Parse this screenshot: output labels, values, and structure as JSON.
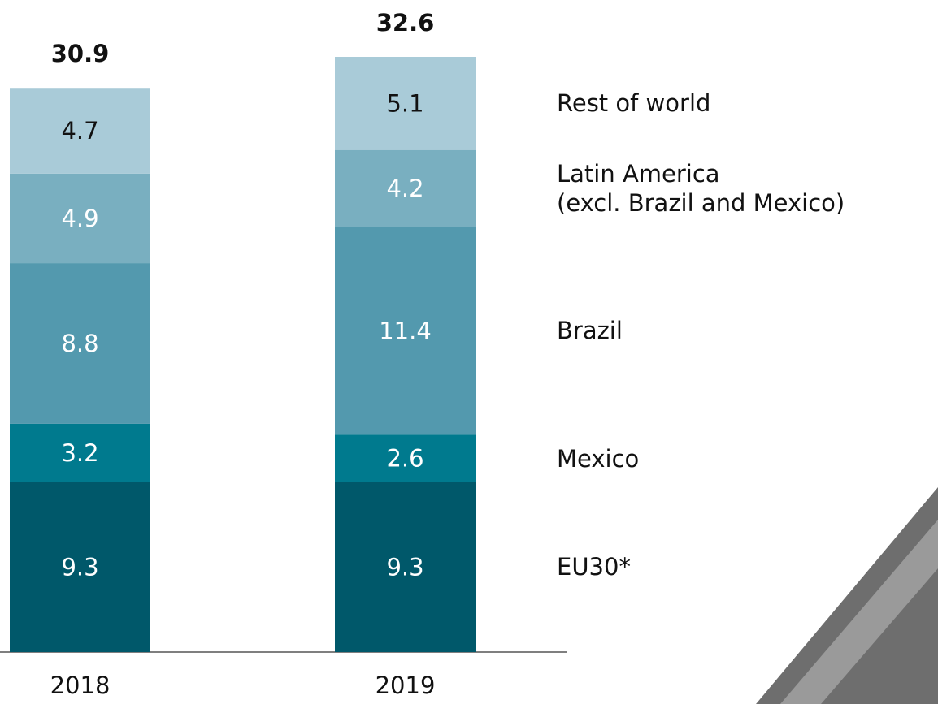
{
  "chart_data": {
    "type": "stacked-bar",
    "categories": [
      "2018",
      "2019"
    ],
    "totals": [
      30.9,
      32.6
    ],
    "series": [
      {
        "name": "EU30*",
        "color": "#00586a",
        "values": [
          9.3,
          9.3
        ]
      },
      {
        "name": "Mexico",
        "color": "#007a8e",
        "values": [
          3.2,
          2.6
        ]
      },
      {
        "name": "Brazil",
        "color": "#5399ae",
        "values": [
          8.8,
          11.4
        ]
      },
      {
        "name": "Latin America\n(excl. Brazil and Mexico)",
        "color": "#79afc0",
        "values": [
          4.9,
          4.2
        ]
      },
      {
        "name": "Rest of world",
        "color": "#a9cbd8",
        "values": [
          4.7,
          5.1
        ]
      }
    ]
  }
}
